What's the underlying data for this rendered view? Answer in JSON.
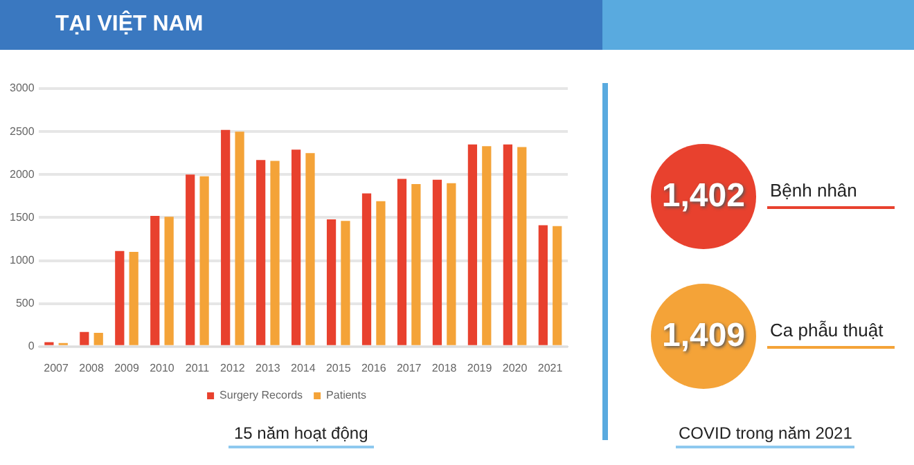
{
  "chart_data": [
    {
      "type": "bar",
      "title": "TẠI VIỆT NAM",
      "xlabel": "15 năm hoạt động",
      "categories": [
        "2007",
        "2008",
        "2009",
        "2010",
        "2011",
        "2012",
        "2013",
        "2014",
        "2015",
        "2016",
        "2017",
        "2018",
        "2019",
        "2020",
        "2021"
      ],
      "series": [
        {
          "name": "Surgery Records",
          "color": "#e8412e",
          "values": [
            50,
            170,
            1110,
            1520,
            2000,
            2520,
            2170,
            2290,
            1480,
            1780,
            1950,
            1940,
            2350,
            2350,
            1410
          ]
        },
        {
          "name": "Patients",
          "color": "#f4a338",
          "values": [
            40,
            160,
            1100,
            1510,
            1980,
            2500,
            2160,
            2250,
            1460,
            1690,
            1890,
            1900,
            2330,
            2320,
            1400
          ]
        }
      ],
      "ylim": [
        0,
        3000
      ],
      "yticks": [
        0,
        500,
        1000,
        1500,
        2000,
        2500,
        3000
      ],
      "grid": "y",
      "legend": "bottom"
    },
    {
      "type": "other",
      "title": "COVID trong năm 2021",
      "categories": [
        "Bệnh nhân",
        "Ca phẫu thuật"
      ],
      "values": [
        1402,
        1409
      ],
      "value_labels": [
        "1,402",
        "1,409"
      ],
      "colors": [
        "#e8412e",
        "#f4a338"
      ]
    }
  ]
}
